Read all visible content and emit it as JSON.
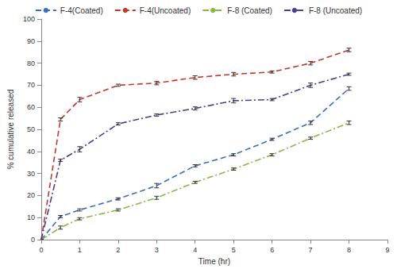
{
  "chart_data": {
    "type": "line",
    "x_label": "Time (hr)",
    "y_label": "% cumulative released",
    "xlim": [
      0,
      9
    ],
    "xticks": [
      0,
      1,
      2,
      3,
      4,
      5,
      6,
      7,
      8,
      9
    ],
    "ylim": [
      0,
      100
    ],
    "yticks": [
      0,
      10,
      20,
      30,
      40,
      50,
      60,
      70,
      80,
      90,
      100
    ],
    "grid": false,
    "legend": "top",
    "x": [
      0,
      0.5,
      1,
      2,
      3,
      4,
      5,
      6,
      7,
      8
    ],
    "series": [
      {
        "name": "F-4(Coated)",
        "color": "#3a6fc0",
        "line_style": "dashed",
        "marker": "none",
        "values": [
          0,
          10.5,
          13.5,
          18.5,
          24.5,
          33.5,
          38.5,
          45.5,
          53,
          68.5
        ],
        "errors": [
          0,
          0.5,
          0.5,
          0.5,
          1,
          0.5,
          0.5,
          0.5,
          0.8,
          0.8
        ]
      },
      {
        "name": "F-4(Uncoated)",
        "color": "#c0392b",
        "line_style": "dashed",
        "marker": "none",
        "values": [
          0,
          54.5,
          63.5,
          70,
          71,
          73.5,
          75,
          76,
          80,
          86
        ],
        "errors": [
          0,
          0.7,
          1,
          0.5,
          0.8,
          0.8,
          0.8,
          0.5,
          0.8,
          0.8
        ]
      },
      {
        "name": "F-8 (Coated)",
        "color": "#8db548",
        "line_style": "dashdot",
        "marker": "none",
        "values": [
          0,
          5.5,
          9.5,
          13.5,
          19,
          26,
          32,
          38.5,
          46,
          53
        ],
        "errors": [
          0,
          0.7,
          0.5,
          0.5,
          0.7,
          0.5,
          0.5,
          0.5,
          0.5,
          0.8
        ]
      },
      {
        "name": "F-8 (Uncoated)",
        "color": "#4b3d8f",
        "line_style": "dashdot",
        "marker": "none",
        "values": [
          0,
          36,
          41,
          52.5,
          56.5,
          59.5,
          63,
          63.5,
          70,
          75
        ],
        "errors": [
          0,
          0.5,
          1.2,
          0.5,
          0.5,
          0.7,
          1,
          0.5,
          1,
          0.5
        ]
      }
    ]
  }
}
